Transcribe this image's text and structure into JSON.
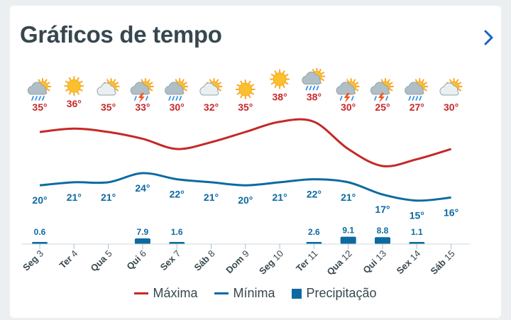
{
  "header": {
    "title": "Gráficos de tempo"
  },
  "colors": {
    "max": "#c62828",
    "min": "#0d6aa1",
    "precip": "#0d6aa1",
    "title": "#37474f",
    "axis": "#37474f"
  },
  "chart_data": {
    "type": "line",
    "categories": [
      "Seg 3",
      "Ter 4",
      "Qua 5",
      "Qui 6",
      "Sex 7",
      "Sáb 8",
      "Dom 9",
      "Seg 10",
      "Ter 11",
      "Qua 12",
      "Qui 13",
      "Sex 14",
      "Sáb 15"
    ],
    "icons": [
      "sun-cloud-rain-icon",
      "sun-icon",
      "sun-cloud-icon",
      "sun-cloud-storm-icon",
      "sun-cloud-rain-icon",
      "sun-cloud-icon",
      "sun-icon",
      "sun-icon",
      "sun-cloud-rain-icon",
      "sun-cloud-storm-icon",
      "sun-cloud-storm-icon",
      "sun-cloud-rain-icon",
      "sun-cloud-icon"
    ],
    "series": [
      {
        "name": "Máxima",
        "unit": "°",
        "values": [
          35,
          36,
          35,
          33,
          30,
          32,
          35,
          38,
          38,
          30,
          25,
          27,
          30
        ],
        "labels": [
          "35°",
          "36°",
          "35°",
          "33°",
          "30°",
          "32°",
          "35°",
          "38°",
          "38°",
          "30°",
          "25°",
          "27°",
          "30°"
        ]
      },
      {
        "name": "Mínima",
        "unit": "°",
        "values": [
          20,
          21,
          21,
          24,
          22,
          21,
          20,
          21,
          22,
          21,
          17,
          15,
          16
        ],
        "labels": [
          "20°",
          "21°",
          "21°",
          "24°",
          "22°",
          "21°",
          "20°",
          "21°",
          "22°",
          "21°",
          "17°",
          "15°",
          "16°"
        ]
      },
      {
        "name": "Precipitação",
        "values": [
          0.6,
          0,
          0,
          7.9,
          1.6,
          0,
          0,
          0,
          2.6,
          9.1,
          8.8,
          1.1,
          0
        ],
        "labels": [
          "0.6",
          "",
          "",
          "7.9",
          "1.6",
          "",
          "",
          "",
          "2.6",
          "9.1",
          "8.8",
          "1.1",
          ""
        ]
      }
    ],
    "legend": [
      "Máxima",
      "Mínima",
      "Precipitação"
    ],
    "legend_position": "bottom",
    "grid": false
  }
}
